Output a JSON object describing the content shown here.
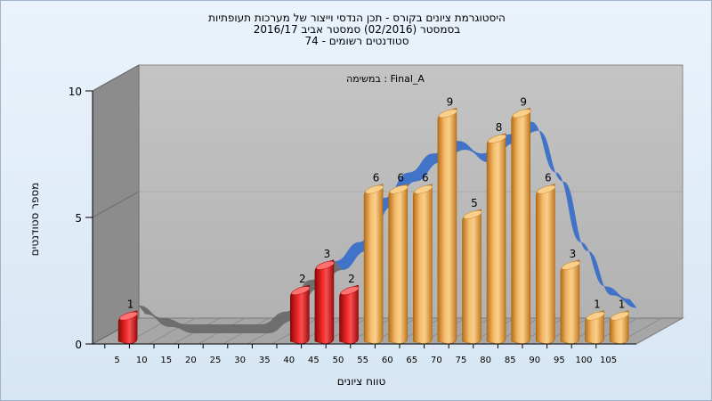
{
  "chart_data": {
    "type": "bar",
    "title_lines": [
      "היסטוגרמת ציונים בקורס - תכן הנדסי וייצור של מערכות תעופתיות",
      "בסמסטר  (02/2016)  סמסטר אביב 2016/17",
      "סטודנטים רשומים - 74"
    ],
    "annotation": "במשימה : Final_A",
    "xlabel": "טווח ציונים",
    "ylabel": "מספר סטודנטים",
    "categories": [
      "5",
      "10",
      "15",
      "20",
      "25",
      "30",
      "35",
      "40",
      "45",
      "50",
      "55",
      "60",
      "65",
      "70",
      "75",
      "80",
      "85",
      "90",
      "95",
      "100",
      "105"
    ],
    "values": [
      1,
      0,
      0,
      0,
      0,
      0,
      0,
      2,
      3,
      2,
      6,
      6,
      6,
      9,
      5,
      8,
      9,
      6,
      3,
      1,
      1
    ],
    "failing_categories": [
      "5",
      "10",
      "15",
      "20",
      "25",
      "30",
      "35",
      "40",
      "45",
      "50"
    ],
    "ylim": [
      0,
      10
    ],
    "yticks": [
      "0",
      "5",
      "10"
    ],
    "colors": {
      "fail_bar": "#e01818",
      "pass_bar": "#f0a848",
      "curve": "#3a70c8",
      "curve_shadow": "#6a6a6a",
      "wall_back": "#bdbdbd",
      "wall_side": "#8e8e8e",
      "floor": "#a8a8a8"
    }
  }
}
